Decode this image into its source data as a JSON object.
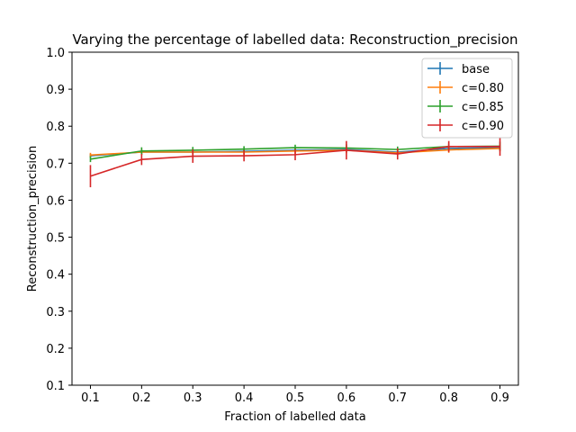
{
  "chart_data": {
    "type": "line",
    "title": "Varying the percentage of labelled data: Reconstruction_precision",
    "xlabel": "Fraction of labelled data",
    "ylabel": "Reconstruction_precision",
    "x": [
      0.1,
      0.2,
      0.3,
      0.4,
      0.5,
      0.6,
      0.7,
      0.8,
      0.9
    ],
    "xticks": [
      "0.1",
      "0.2",
      "0.3",
      "0.4",
      "0.5",
      "0.6",
      "0.7",
      "0.8",
      "0.9"
    ],
    "yticks": [
      "0.1",
      "0.2",
      "0.3",
      "0.4",
      "0.5",
      "0.6",
      "0.7",
      "0.8",
      "0.9",
      "1.0"
    ],
    "xlim": [
      0.064,
      0.936
    ],
    "ylim": [
      0.1,
      1.0
    ],
    "grid": false,
    "legend_position": "top-right",
    "series": [
      {
        "name": "base",
        "color": "#1f77b4",
        "values": [
          0.72,
          0.73,
          0.73,
          0.732,
          0.735,
          0.737,
          0.73,
          0.74,
          0.742
        ],
        "errors": [
          0.005,
          0.006,
          0.005,
          0.006,
          0.005,
          0.006,
          0.005,
          0.006,
          0.006
        ]
      },
      {
        "name": "c=0.80",
        "color": "#ff7f0e",
        "values": [
          0.722,
          0.73,
          0.73,
          0.73,
          0.733,
          0.735,
          0.728,
          0.736,
          0.74
        ],
        "errors": [
          0.006,
          0.008,
          0.008,
          0.008,
          0.008,
          0.008,
          0.008,
          0.008,
          0.008
        ]
      },
      {
        "name": "c=0.85",
        "color": "#2ca02c",
        "values": [
          0.711,
          0.733,
          0.735,
          0.738,
          0.742,
          0.741,
          0.737,
          0.745,
          0.746
        ],
        "errors": [
          0.008,
          0.01,
          0.009,
          0.008,
          0.008,
          0.01,
          0.008,
          0.008,
          0.012
        ]
      },
      {
        "name": "c=0.90",
        "color": "#d62728",
        "values": [
          0.665,
          0.71,
          0.719,
          0.72,
          0.723,
          0.735,
          0.725,
          0.745,
          0.745
        ],
        "errors": [
          0.03,
          0.015,
          0.018,
          0.015,
          0.015,
          0.025,
          0.015,
          0.015,
          0.025
        ]
      }
    ]
  }
}
